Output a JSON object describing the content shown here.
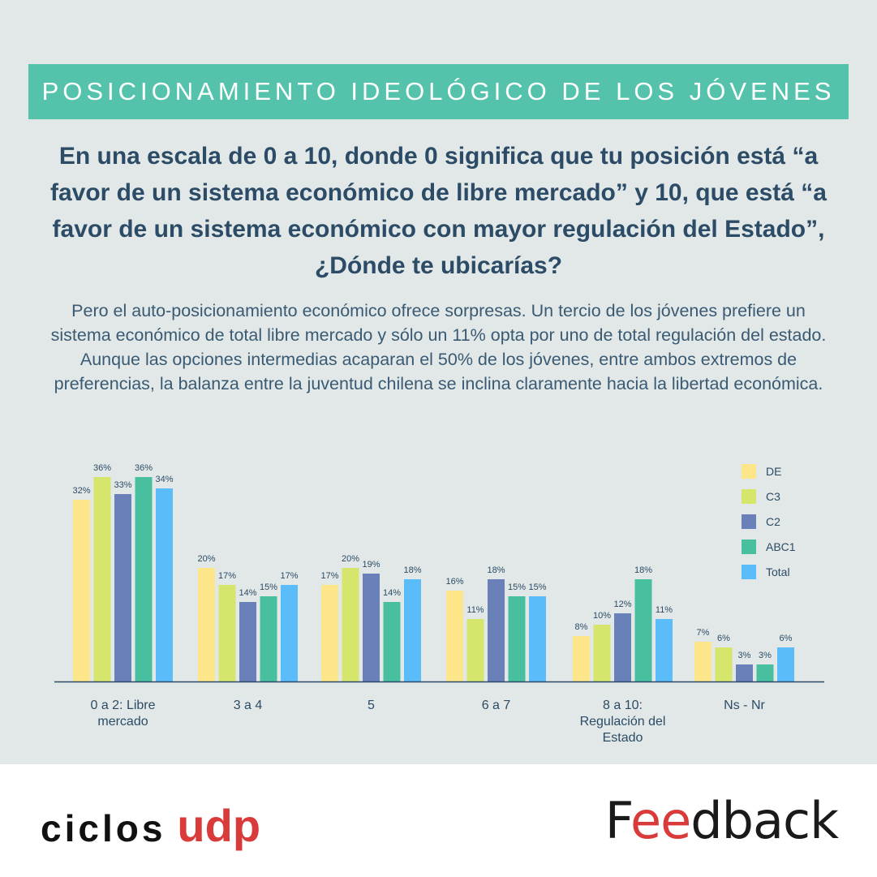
{
  "header": {
    "title": "POSICIONAMIENTO IDEOLÓGICO DE LOS JÓVENES",
    "question": "En una escala de 0 a 10, donde 0 significa que tu posición está “a favor de un sistema económico de libre mercado” y 10, que está “a favor de un sistema económico con mayor regulación del Estado”, ¿Dónde te ubicarías?",
    "description": "Pero el auto-posicionamiento económico ofrece sorpresas. Un tercio de los jóvenes prefiere un sistema económico de total libre mercado y sólo un 11% opta por uno de total regulación del estado. Aunque las opciones intermedias acaparan el 50% de los jóvenes, entre ambos extremos de preferencias, la balanza entre la juventud chilena se inclina claramente hacia la libertad económica."
  },
  "chart_data": {
    "type": "bar",
    "title": "",
    "xlabel": "",
    "ylabel": "",
    "ylim": [
      0,
      40
    ],
    "grid": false,
    "legend_position": "top-right",
    "value_suffix": "%",
    "categories": [
      [
        "0 a 2: Libre",
        "mercado"
      ],
      [
        "3 a 4"
      ],
      [
        "5"
      ],
      [
        "6 a 7"
      ],
      [
        "8 a 10:",
        "Regulación del",
        "Estado"
      ],
      [
        "Ns - Nr"
      ]
    ],
    "series": [
      {
        "name": "DE",
        "color": "#fde68a",
        "values": [
          32,
          20,
          17,
          16,
          8,
          7
        ]
      },
      {
        "name": "C3",
        "color": "#d6e56b",
        "values": [
          36,
          17,
          20,
          11,
          10,
          6
        ]
      },
      {
        "name": "C2",
        "color": "#6a80b9",
        "values": [
          33,
          14,
          19,
          18,
          12,
          3
        ]
      },
      {
        "name": "ABC1",
        "color": "#48c0a0",
        "values": [
          36,
          15,
          14,
          15,
          18,
          3
        ]
      },
      {
        "name": "Total",
        "color": "#5abcf8",
        "values": [
          34,
          17,
          18,
          15,
          11,
          6
        ]
      }
    ]
  },
  "footer": {
    "left_logo_text": "ciclos",
    "left_logo_accent": "udp",
    "right_logo_parts": [
      "F",
      "ee",
      "dback"
    ]
  }
}
